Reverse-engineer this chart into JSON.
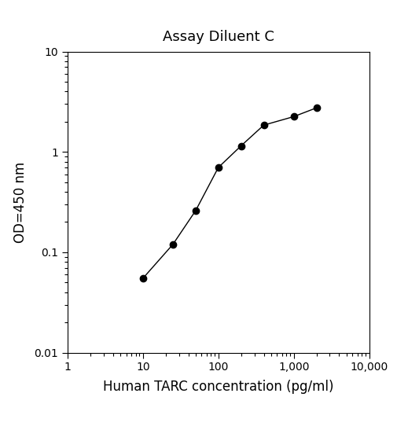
{
  "title": "Assay Diluent C",
  "xlabel": "Human TARC concentration (pg/ml)",
  "ylabel": "OD=450 nm",
  "x_data": [
    10,
    25,
    50,
    100,
    200,
    400,
    1000,
    2000
  ],
  "y_data": [
    0.055,
    0.12,
    0.26,
    0.7,
    1.15,
    1.85,
    2.25,
    2.75
  ],
  "xlim": [
    1,
    10000
  ],
  "ylim": [
    0.01,
    10
  ],
  "line_color": "#000000",
  "marker_color": "#000000",
  "marker_size": 6,
  "line_width": 1.0,
  "title_fontsize": 13,
  "label_fontsize": 12,
  "tick_fontsize": 10,
  "x_ticks": [
    1,
    10,
    100,
    1000,
    10000
  ],
  "x_tick_labels": [
    "1",
    "10",
    "100",
    "1,000",
    "10,000"
  ],
  "y_ticks": [
    0.01,
    0.1,
    1,
    10
  ],
  "y_tick_labels": [
    "0.01",
    "0.1",
    "1",
    "10"
  ]
}
